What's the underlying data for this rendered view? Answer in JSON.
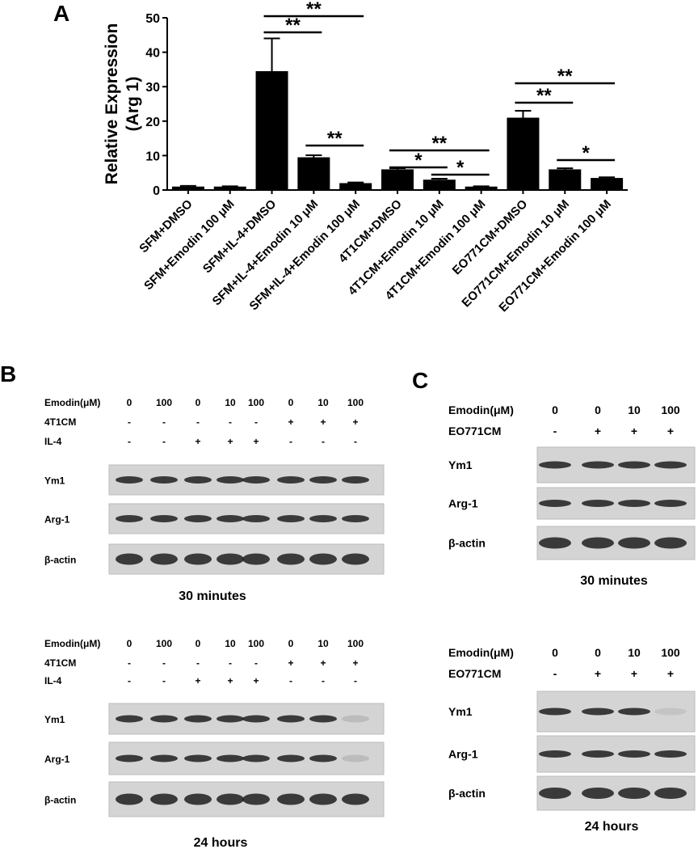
{
  "chart_data": {
    "type": "bar",
    "panel": "A",
    "y_label": [
      "Relative Expression",
      "(Arg 1)"
    ],
    "categories": [
      "SFM+DMSO",
      "SFM+Emodin 100 μM",
      "SFM+IL-4+DMSO",
      "SFM+IL-4+Emodin 10 μM",
      "SFM+IL-4+Emodin 100 μM",
      "4T1CM+DMSO",
      "4T1CM+Emodin 10 μM",
      "4T1CM+Emodin 100 μM",
      "EO771CM+DMSO",
      "EO771CM+Emodin 10 μM",
      "EO771CM+Emodin 100 μM"
    ],
    "values": [
      1,
      1,
      34.5,
      9.5,
      2,
      6,
      3,
      1,
      21,
      6,
      3.5
    ],
    "errors": [
      0.2,
      0.1,
      9.5,
      0.6,
      0.2,
      0.3,
      0.3,
      0.1,
      2,
      0.3,
      0.2
    ],
    "color": "#000000",
    "ylim": [
      0,
      50
    ],
    "yticks": [
      0,
      10,
      20,
      30,
      40,
      50
    ],
    "significance": [
      {
        "from": 2,
        "to": 3,
        "label": "**"
      },
      {
        "from": 2,
        "to": 4,
        "label": "**"
      },
      {
        "from": 3,
        "to": 4,
        "label": "**"
      },
      {
        "from": 5,
        "to": 6,
        "label": "*"
      },
      {
        "from": 6,
        "to": 7,
        "label": "*"
      },
      {
        "from": 5,
        "to": 7,
        "label": "**"
      },
      {
        "from": 8,
        "to": 9,
        "label": "**"
      },
      {
        "from": 8,
        "to": 10,
        "label": "**"
      },
      {
        "from": 9,
        "to": 10,
        "label": "*"
      }
    ]
  },
  "panels": [
    {
      "label": "B",
      "blots": [
        {
          "rows": [
            {
              "name": "Emodin(μM)",
              "lanes": [
                "0",
                "100",
                "0",
                "10",
                "100",
                "0",
                "10",
                "100"
              ]
            },
            {
              "name": "4T1CM",
              "lanes": [
                "-",
                "-",
                "-",
                "-",
                "-",
                "+",
                "+",
                "+"
              ]
            },
            {
              "name": "IL-4",
              "lanes": [
                "-",
                "-",
                "+",
                "+",
                "+",
                "-",
                "-",
                "-"
              ]
            }
          ],
          "bands": [
            "Ym1",
            "Arg-1",
            "β-actin"
          ],
          "caption": "30 minutes"
        },
        {
          "rows": [
            {
              "name": "Emodin(μM)",
              "lanes": [
                "0",
                "100",
                "0",
                "10",
                "100",
                "0",
                "10",
                "100"
              ]
            },
            {
              "name": "4T1CM",
              "lanes": [
                "-",
                "-",
                "-",
                "-",
                "-",
                "+",
                "+",
                "+"
              ]
            },
            {
              "name": "IL-4",
              "lanes": [
                "-",
                "-",
                "+",
                "+",
                "+",
                "-",
                "-",
                "-"
              ]
            }
          ],
          "bands": [
            "Ym1",
            "Arg-1",
            "β-actin"
          ],
          "caption": "24 hours"
        }
      ]
    },
    {
      "label": "C",
      "blots": [
        {
          "rows": [
            {
              "name": "Emodin(μM)",
              "lanes": [
                "0",
                "0",
                "10",
                "100"
              ]
            },
            {
              "name": "EO771CM",
              "lanes": [
                "-",
                "+",
                "+",
                "+"
              ]
            }
          ],
          "bands": [
            "Ym1",
            "Arg-1",
            "β-actin"
          ],
          "caption": "30 minutes"
        },
        {
          "rows": [
            {
              "name": "Emodin(μM)",
              "lanes": [
                "0",
                "0",
                "10",
                "100"
              ]
            },
            {
              "name": "EO771CM",
              "lanes": [
                "-",
                "+",
                "+",
                "+"
              ]
            }
          ],
          "bands": [
            "Ym1",
            "Arg-1",
            "β-actin"
          ],
          "caption": "24 hours"
        }
      ]
    }
  ]
}
